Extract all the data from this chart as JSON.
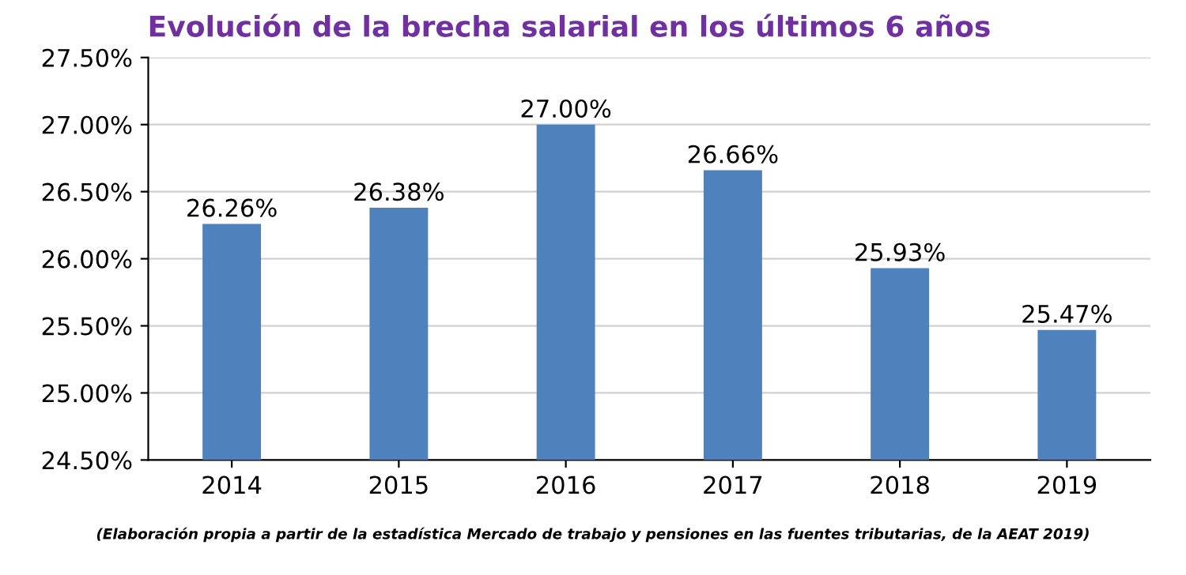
{
  "chart_data": {
    "type": "bar",
    "title": "Evolución de la brecha salarial en los últimos 6 años",
    "categories": [
      "2014",
      "2015",
      "2016",
      "2017",
      "2018",
      "2019"
    ],
    "values": [
      26.26,
      26.38,
      27.0,
      26.66,
      25.93,
      25.47
    ],
    "value_labels": [
      "26.26%",
      "26.38%",
      "27.00%",
      "26.66%",
      "25.93%",
      "25.47%"
    ],
    "color": "#4f81bd",
    "ylim": [
      24.5,
      27.5
    ],
    "yticks": [
      {
        "value": 24.5,
        "label": "24.50%"
      },
      {
        "value": 25.0,
        "label": "25.00%"
      },
      {
        "value": 25.5,
        "label": "25.50%"
      },
      {
        "value": 26.0,
        "label": "26.00%"
      },
      {
        "value": 26.5,
        "label": "26.50%"
      },
      {
        "value": 27.0,
        "label": "27.00%"
      },
      {
        "value": 27.5,
        "label": "27.50%"
      }
    ],
    "grid": "y",
    "annotations": [
      "(Elaboración propia a partir de la estadística Mercado de trabajo y pensiones en las fuentes tributarias, de la AEAT 2019)"
    ]
  }
}
